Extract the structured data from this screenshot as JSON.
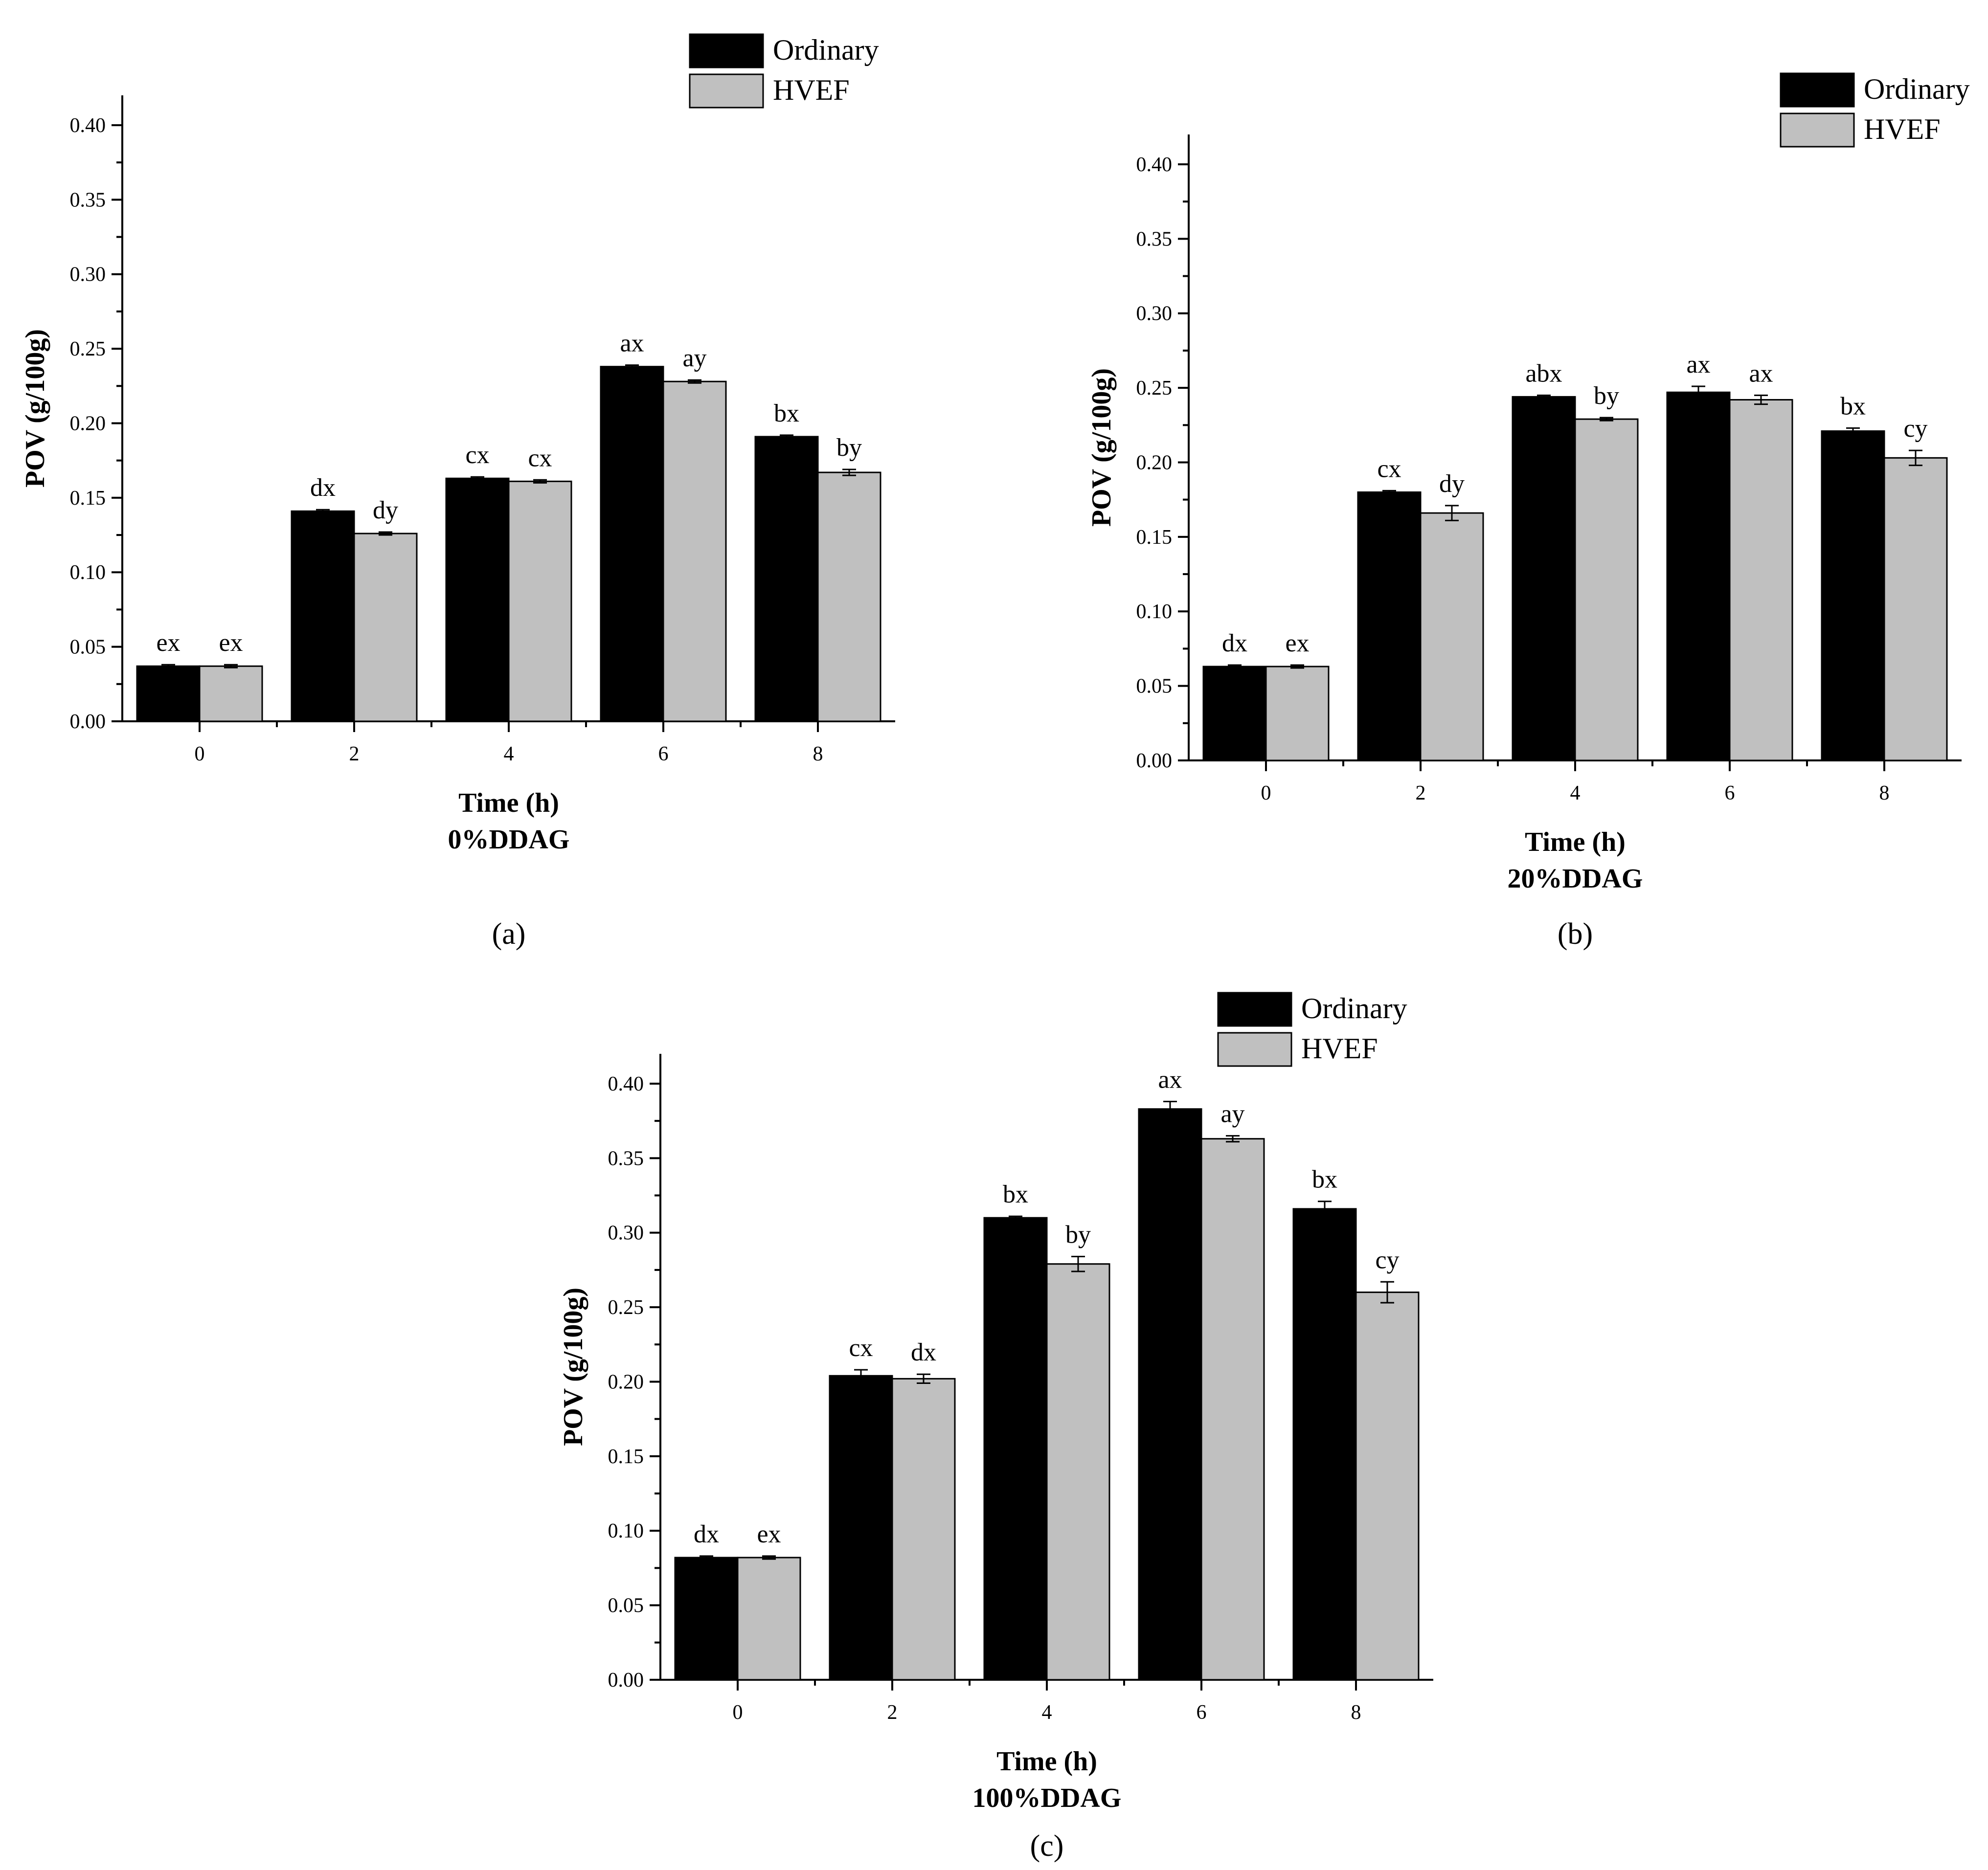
{
  "colors": {
    "ordinary": "#000000",
    "hvef": "#c0c0c0"
  },
  "chart_data": [
    {
      "type": "bar",
      "panel_label": "(a)",
      "condition": "0%DDAG",
      "xlabel": "Time (h)",
      "ylabel": "POV (g/100g)",
      "ylim": [
        0,
        0.42
      ],
      "yticks": [
        "0.00",
        "0.05",
        "0.10",
        "0.15",
        "0.20",
        "0.25",
        "0.30",
        "0.35",
        "0.40"
      ],
      "categories": [
        "0",
        "2",
        "4",
        "6",
        "8"
      ],
      "legend_position": "top-right",
      "series": [
        {
          "name": "Ordinary",
          "values": [
            0.037,
            0.141,
            0.163,
            0.238,
            0.191
          ],
          "errors": [
            0.001,
            0.001,
            0.001,
            0.001,
            0.001
          ],
          "labels": [
            "ex",
            "dx",
            "cx",
            "ax",
            "bx"
          ]
        },
        {
          "name": "HVEF",
          "values": [
            0.037,
            0.126,
            0.161,
            0.228,
            0.167
          ],
          "errors": [
            0.001,
            0.001,
            0.001,
            0.001,
            0.002
          ],
          "labels": [
            "ex",
            "dy",
            "cx",
            "ay",
            "by"
          ]
        }
      ]
    },
    {
      "type": "bar",
      "panel_label": "(b)",
      "condition": "20%DDAG",
      "xlabel": "Time (h)",
      "ylabel": "POV (g/100g)",
      "ylim": [
        0,
        0.42
      ],
      "yticks": [
        "0.00",
        "0.05",
        "0.10",
        "0.15",
        "0.20",
        "0.25",
        "0.30",
        "0.35",
        "0.40"
      ],
      "categories": [
        "0",
        "2",
        "4",
        "6",
        "8"
      ],
      "legend_position": "top-right",
      "series": [
        {
          "name": "Ordinary",
          "values": [
            0.063,
            0.18,
            0.244,
            0.247,
            0.221
          ],
          "errors": [
            0.001,
            0.001,
            0.001,
            0.004,
            0.002
          ],
          "labels": [
            "dx",
            "cx",
            "abx",
            "ax",
            "bx"
          ]
        },
        {
          "name": "HVEF",
          "values": [
            0.063,
            0.166,
            0.229,
            0.242,
            0.203
          ],
          "errors": [
            0.001,
            0.005,
            0.001,
            0.003,
            0.005
          ],
          "labels": [
            "ex",
            "dy",
            "by",
            "ax",
            "cy"
          ]
        }
      ]
    },
    {
      "type": "bar",
      "panel_label": "(c)",
      "condition": "100%DDAG",
      "xlabel": "Time (h)",
      "ylabel": "POV (g/100g)",
      "ylim": [
        0,
        0.42
      ],
      "yticks": [
        "0.00",
        "0.05",
        "0.10",
        "0.15",
        "0.20",
        "0.25",
        "0.30",
        "0.35",
        "0.40"
      ],
      "categories": [
        "0",
        "2",
        "4",
        "6",
        "8"
      ],
      "legend_position": "top-right",
      "series": [
        {
          "name": "Ordinary",
          "values": [
            0.082,
            0.204,
            0.31,
            0.383,
            0.316
          ],
          "errors": [
            0.001,
            0.004,
            0.001,
            0.005,
            0.005
          ],
          "labels": [
            "dx",
            "cx",
            "bx",
            "ax",
            "bx"
          ]
        },
        {
          "name": "HVEF",
          "values": [
            0.082,
            0.202,
            0.279,
            0.363,
            0.26
          ],
          "errors": [
            0.001,
            0.003,
            0.005,
            0.002,
            0.007
          ],
          "labels": [
            "ex",
            "dx",
            "by",
            "ay",
            "cy"
          ]
        }
      ]
    }
  ]
}
